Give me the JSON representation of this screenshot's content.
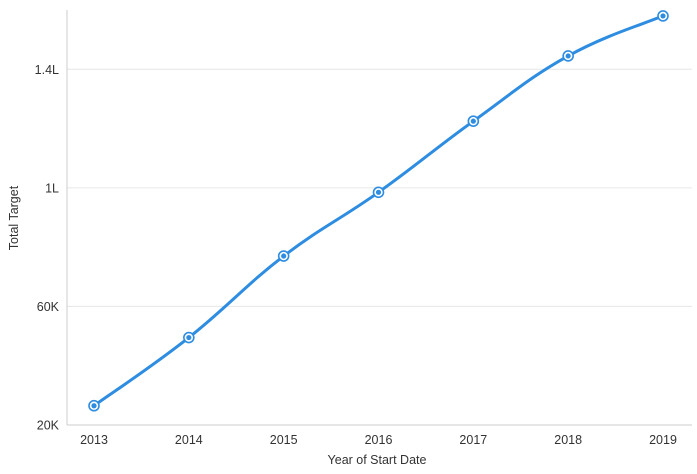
{
  "chart_data": {
    "type": "line",
    "xlabel": "Year of Start Date",
    "ylabel": "Total Target",
    "categories": [
      "2013",
      "2014",
      "2015",
      "2016",
      "2017",
      "2018",
      "2019"
    ],
    "series": [
      {
        "values": [
          26500,
          49500,
          77000,
          98500,
          122500,
          144500,
          158000
        ]
      }
    ],
    "ylim": [
      20000,
      160000
    ],
    "yticks": [
      {
        "value": 20000,
        "label": "20K"
      },
      {
        "value": 60000,
        "label": "60K"
      },
      {
        "value": 100000,
        "label": "1L"
      },
      {
        "value": 140000,
        "label": "1.4L"
      }
    ],
    "grid": "horizontal",
    "legend": "none",
    "colors": {
      "line": "#2e8de1",
      "grid": "#e6e6e6",
      "axis": "#cccccc",
      "text": "#333333"
    }
  }
}
